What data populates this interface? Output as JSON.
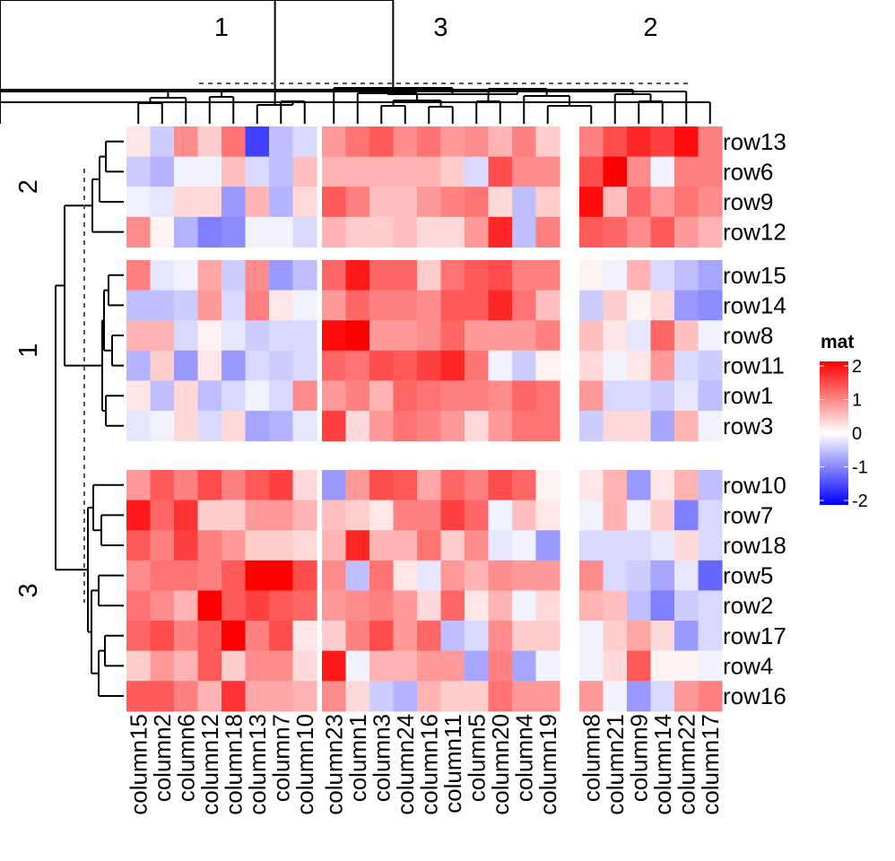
{
  "chart_data": {
    "type": "heatmap",
    "legend": {
      "title": "mat",
      "ticks": [
        2,
        1,
        0,
        -1,
        -2
      ],
      "range": [
        -2,
        2
      ],
      "colors": {
        "low": "#0000ff",
        "mid": "#ffffff",
        "high": "#ff0000"
      },
      "placement": "right"
    },
    "column_slices": [
      {
        "label": "1",
        "columns": [
          "column15",
          "column2",
          "column6",
          "column12",
          "column18",
          "column13",
          "column7",
          "column10"
        ]
      },
      {
        "label": "3",
        "columns": [
          "column23",
          "column1",
          "column3",
          "column24",
          "column16",
          "column11",
          "column5",
          "column20",
          "column4",
          "column19"
        ]
      },
      {
        "label": "2",
        "columns": [
          "column8",
          "column21",
          "column9",
          "column14",
          "column22",
          "column17"
        ]
      }
    ],
    "row_slices": [
      {
        "label": "2",
        "rows": [
          "row13",
          "row6",
          "row9",
          "row12"
        ]
      },
      {
        "label": "1",
        "rows": [
          "row15",
          "row14",
          "row8",
          "row11",
          "row1",
          "row3"
        ]
      },
      {
        "label": "3",
        "rows": [
          "row10",
          "row7",
          "row18",
          "row5",
          "row2",
          "row17",
          "row4",
          "row16"
        ]
      }
    ],
    "values": [
      [
        0.2,
        -0.4,
        0.9,
        0.4,
        1.1,
        -1.5,
        -0.5,
        -0.3,
        0.8,
        1.1,
        1.3,
        0.9,
        1.1,
        0.8,
        0.9,
        0.6,
        1.0,
        0.4,
        1.0,
        1.4,
        1.7,
        1.5,
        1.9,
        1.0
      ],
      [
        -0.4,
        -0.6,
        -0.1,
        -0.1,
        0.5,
        -0.3,
        -0.5,
        0.5,
        0.6,
        0.6,
        0.6,
        0.6,
        0.6,
        0.4,
        -0.3,
        1.4,
        0.9,
        0.9,
        1.4,
        2.0,
        0.9,
        -0.1,
        1.0,
        1.0
      ],
      [
        -0.1,
        -0.2,
        0.3,
        0.3,
        -0.8,
        0.6,
        -0.6,
        0.3,
        1.3,
        1.0,
        0.5,
        0.5,
        0.8,
        1.0,
        1.1,
        0.3,
        -0.5,
        0.4,
        1.9,
        0.5,
        1.2,
        0.8,
        1.1,
        0.9
      ],
      [
        0.9,
        0.1,
        -0.6,
        -1.0,
        -0.9,
        -0.1,
        -0.1,
        -0.3,
        0.6,
        0.4,
        0.4,
        0.5,
        0.3,
        0.3,
        0.8,
        1.7,
        -0.5,
        1.0,
        1.3,
        1.2,
        0.9,
        1.3,
        0.8,
        0.6
      ],
      [
        1.0,
        -0.2,
        -0.1,
        0.7,
        -0.4,
        0.9,
        -0.8,
        -0.5,
        1.2,
        1.8,
        1.2,
        1.2,
        0.4,
        1.1,
        1.3,
        1.4,
        1.0,
        1.0,
        0.1,
        -0.1,
        0.6,
        -0.3,
        -0.5,
        -0.7
      ],
      [
        -0.5,
        -0.5,
        -0.4,
        0.8,
        -0.3,
        1.0,
        0.2,
        -0.1,
        0.8,
        1.2,
        1.0,
        1.0,
        0.9,
        1.3,
        1.3,
        1.7,
        1.1,
        0.5,
        -0.4,
        0.4,
        0.1,
        0.3,
        -0.8,
        -0.9
      ],
      [
        0.6,
        0.6,
        -0.3,
        0.1,
        -0.2,
        -0.4,
        -0.3,
        -0.3,
        1.9,
        2.0,
        0.8,
        0.8,
        0.9,
        1.2,
        0.8,
        0.8,
        0.8,
        1.0,
        0.5,
        0.2,
        -0.2,
        1.2,
        0.5,
        -0.1
      ],
      [
        -0.6,
        0.4,
        -0.8,
        0.2,
        -0.8,
        -0.3,
        -0.4,
        -0.3,
        1.2,
        1.1,
        1.4,
        1.3,
        1.5,
        1.7,
        1.1,
        -0.1,
        -0.4,
        0.1,
        0.3,
        -0.1,
        0.2,
        0.8,
        -0.3,
        -0.4
      ],
      [
        0.2,
        -0.5,
        0.3,
        -0.5,
        -0.3,
        -0.1,
        -0.3,
        0.9,
        0.8,
        1.0,
        0.6,
        1.2,
        1.1,
        1.0,
        1.0,
        0.9,
        1.2,
        1.1,
        0.8,
        -0.3,
        -0.3,
        -0.4,
        -0.2,
        -0.5
      ],
      [
        -0.2,
        -0.1,
        0.3,
        -0.3,
        0.3,
        -0.7,
        -0.6,
        -0.2,
        1.5,
        0.3,
        0.8,
        1.1,
        1.0,
        0.8,
        0.3,
        0.8,
        1.1,
        1.1,
        -0.4,
        0.3,
        0.3,
        -0.7,
        0.6,
        -0.1
      ],
      [
        0.8,
        1.3,
        1.0,
        1.4,
        1.0,
        1.3,
        1.5,
        0.3,
        -0.8,
        0.8,
        1.4,
        1.3,
        0.7,
        1.2,
        1.0,
        1.4,
        1.2,
        0.1,
        0.2,
        0.6,
        -0.8,
        0.2,
        0.6,
        -0.5
      ],
      [
        1.8,
        1.2,
        1.6,
        0.4,
        0.4,
        0.8,
        0.8,
        0.6,
        0.5,
        0.4,
        0.2,
        1.0,
        1.0,
        1.5,
        1.2,
        -0.1,
        0.5,
        0.2,
        -0.1,
        0.6,
        -0.1,
        0.4,
        -1.0,
        -0.3
      ],
      [
        1.3,
        1.0,
        1.5,
        1.0,
        0.8,
        0.4,
        0.4,
        0.3,
        0.6,
        1.7,
        0.6,
        0.6,
        1.1,
        0.4,
        0.9,
        -0.2,
        -0.1,
        -0.8,
        -0.3,
        -0.3,
        -0.3,
        -0.2,
        0.3,
        -0.3
      ],
      [
        0.9,
        1.1,
        1.1,
        1.0,
        1.3,
        2.0,
        2.0,
        1.4,
        0.9,
        -0.5,
        1.1,
        0.2,
        -0.2,
        0.8,
        0.6,
        0.9,
        0.8,
        0.8,
        0.9,
        -0.3,
        -0.4,
        -0.7,
        -0.2,
        -1.2
      ],
      [
        1.1,
        0.9,
        0.6,
        2.0,
        1.3,
        1.5,
        1.3,
        1.2,
        0.8,
        0.9,
        1.0,
        0.8,
        0.3,
        1.2,
        0.2,
        0.6,
        -0.1,
        0.3,
        0.6,
        0.5,
        -0.5,
        -1.0,
        -0.4,
        -0.3
      ],
      [
        1.2,
        1.4,
        1.0,
        1.3,
        2.0,
        1.0,
        1.4,
        0.2,
        0.4,
        1.0,
        1.4,
        0.8,
        1.2,
        -0.5,
        -0.3,
        0.9,
        0.4,
        0.4,
        -0.1,
        0.4,
        0.7,
        0.3,
        -0.8,
        -0.3
      ],
      [
        0.4,
        0.8,
        0.6,
        1.3,
        0.4,
        0.9,
        0.9,
        0.3,
        1.8,
        -0.1,
        0.6,
        0.6,
        0.8,
        0.8,
        -0.7,
        1.0,
        -0.7,
        -0.1,
        -0.1,
        0.3,
        1.3,
        0.1,
        0.1,
        -0.1
      ],
      [
        1.3,
        1.3,
        1.0,
        0.6,
        1.6,
        0.7,
        0.7,
        0.6,
        0.9,
        0.3,
        -0.4,
        -0.6,
        0.6,
        0.4,
        0.4,
        1.1,
        0.8,
        0.8,
        0.8,
        -0.1,
        -0.8,
        -0.3,
        0.8,
        1.0
      ]
    ]
  }
}
